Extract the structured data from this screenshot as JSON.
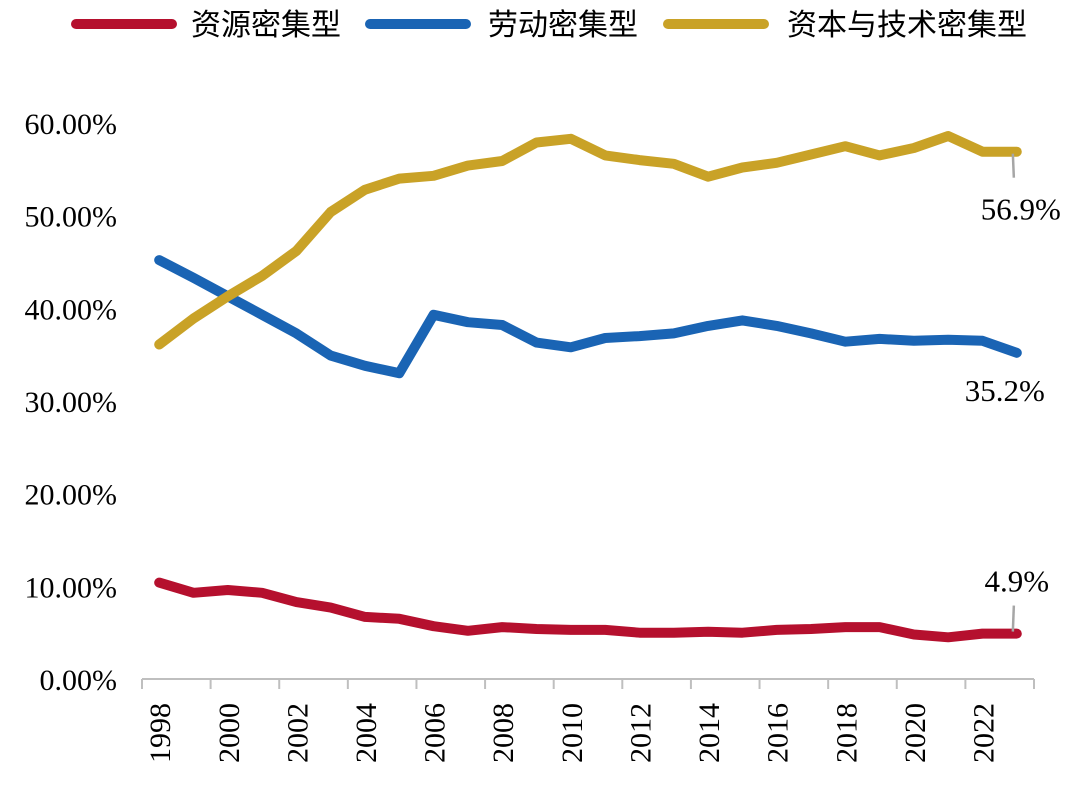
{
  "chart_data": {
    "type": "line",
    "x": [
      "1998",
      "1999",
      "2000",
      "2001",
      "2002",
      "2003",
      "2004",
      "2005",
      "2006",
      "2007",
      "2008",
      "2009",
      "2010",
      "2011",
      "2012",
      "2013",
      "2014",
      "2015",
      "2016",
      "2017",
      "2018",
      "2019",
      "2020",
      "2021",
      "2022",
      "2023"
    ],
    "x_tick_labels": [
      "1998",
      "2000",
      "2002",
      "2004",
      "2006",
      "2008",
      "2010",
      "2012",
      "2014",
      "2016",
      "2018",
      "2020",
      "2022"
    ],
    "y_tick_labels": [
      "0.00%",
      "10.00%",
      "20.00%",
      "30.00%",
      "40.00%",
      "50.00%",
      "60.00%"
    ],
    "ylim": [
      0,
      60
    ],
    "grid": false,
    "legend_position": "top",
    "series": [
      {
        "name": "资源密集型",
        "color": "#b5102e",
        "values": [
          10.4,
          9.3,
          9.6,
          9.3,
          8.3,
          7.7,
          6.7,
          6.5,
          5.7,
          5.2,
          5.6,
          5.4,
          5.3,
          5.3,
          5.0,
          5.0,
          5.1,
          5.0,
          5.3,
          5.4,
          5.6,
          5.6,
          4.8,
          4.5,
          4.9,
          4.9
        ],
        "end_label": "4.9%"
      },
      {
        "name": "劳动密集型",
        "color": "#1a64b4",
        "values": [
          45.2,
          43.3,
          41.3,
          39.3,
          37.3,
          34.9,
          33.8,
          33.0,
          39.3,
          38.5,
          38.2,
          36.3,
          35.8,
          36.8,
          37.0,
          37.3,
          38.1,
          38.7,
          38.1,
          37.3,
          36.4,
          36.7,
          36.5,
          36.6,
          36.5,
          35.2
        ],
        "end_label": "35.2%"
      },
      {
        "name": "资本与技术密集型",
        "color": "#c9a227",
        "values": [
          36.1,
          38.9,
          41.3,
          43.5,
          46.2,
          50.4,
          52.8,
          54.0,
          54.3,
          55.4,
          55.9,
          57.9,
          58.3,
          56.5,
          56.0,
          55.6,
          54.2,
          55.2,
          55.7,
          56.6,
          57.5,
          56.5,
          57.3,
          58.6,
          56.9,
          56.9
        ],
        "end_label": "56.9%"
      }
    ]
  }
}
